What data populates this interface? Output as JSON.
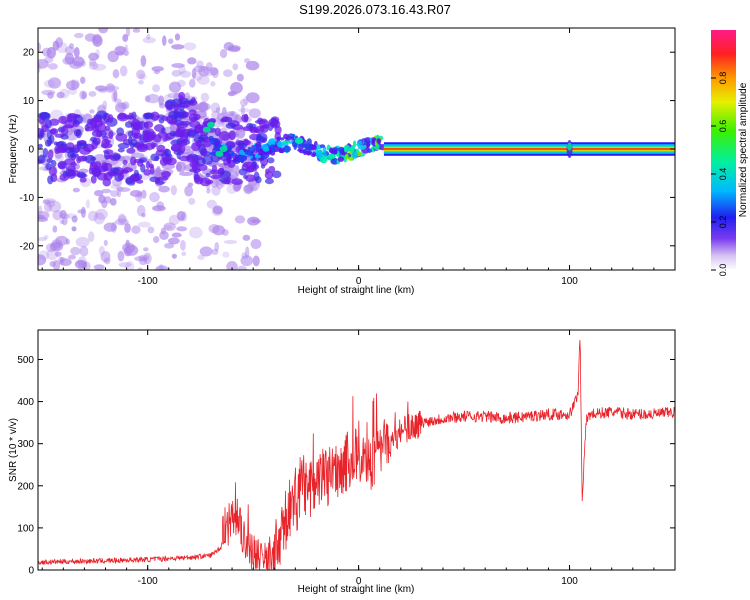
{
  "title": "S199.2026.073.16.43.R07",
  "chart_data": [
    {
      "type": "heatmap",
      "xlabel": "Height of straight line (km)",
      "ylabel": "Frequency (Hz)",
      "xlim": [
        -152,
        150
      ],
      "ylim": [
        -25,
        25
      ],
      "x_ticks": [
        -100,
        0,
        100
      ],
      "y_ticks": [
        -20,
        -10,
        0,
        10,
        20
      ],
      "colorbar": {
        "label": "Normalized spectral amplitude",
        "range": [
          0,
          1
        ],
        "ticks": [
          0.0,
          0.2,
          0.4,
          0.6,
          0.8
        ]
      },
      "features": {
        "steady_tone_frequency_hz": 0,
        "steady_tone_start_km": 12,
        "burst_at_km": 100,
        "diffuse_noise_until_km": -48
      }
    },
    {
      "type": "line",
      "xlabel": "Height of straight line (km)",
      "ylabel": "SNR (10 * v/v)",
      "xlim": [
        -152,
        150
      ],
      "ylim": [
        0,
        570
      ],
      "x_ticks": [
        -100,
        0,
        100
      ],
      "y_ticks": [
        0,
        100,
        200,
        300,
        400,
        500
      ],
      "color": "#e8232a",
      "series": [
        {
          "name": "SNR",
          "x": [
            -152,
            -140,
            -120,
            -100,
            -80,
            -70,
            -65,
            -60,
            -55,
            -50,
            -45,
            -40,
            -35,
            -30,
            -25,
            -20,
            -15,
            -10,
            -5,
            0,
            5,
            10,
            15,
            20,
            25,
            30,
            40,
            50,
            60,
            70,
            80,
            90,
            100,
            102,
            104,
            105,
            106,
            108,
            110,
            120,
            130,
            140,
            150
          ],
          "values": [
            18,
            20,
            22,
            25,
            30,
            35,
            55,
            130,
            80,
            40,
            20,
            40,
            110,
            160,
            190,
            200,
            220,
            240,
            260,
            270,
            250,
            280,
            300,
            330,
            340,
            350,
            360,
            365,
            365,
            360,
            365,
            370,
            370,
            390,
            420,
            560,
            170,
            360,
            370,
            375,
            370,
            370,
            375
          ]
        }
      ]
    }
  ]
}
